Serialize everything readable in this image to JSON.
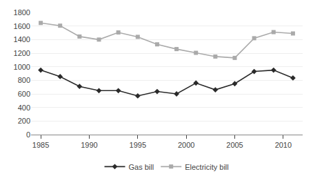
{
  "chart_data": {
    "type": "line",
    "x": [
      1985,
      1987,
      1989,
      1991,
      1993,
      1995,
      1997,
      1999,
      2001,
      2003,
      2005,
      2007,
      2009,
      2011
    ],
    "series": [
      {
        "name": "Gas bill",
        "color": "#2a2a2a",
        "marker": "diamond",
        "values": [
          950,
          855,
          710,
          648,
          648,
          570,
          635,
          600,
          760,
          660,
          750,
          930,
          950,
          835
        ]
      },
      {
        "name": "Electricity bill",
        "color": "#aaaaaa",
        "marker": "square",
        "values": [
          1645,
          1605,
          1445,
          1400,
          1505,
          1440,
          1330,
          1260,
          1205,
          1150,
          1130,
          1420,
          1510,
          1490
        ]
      }
    ],
    "xlim": [
      1984,
      2012
    ],
    "xticks": [
      1985,
      1990,
      1995,
      2000,
      2005,
      2010
    ],
    "ylim": [
      0,
      1800
    ],
    "yticks": [
      0,
      200,
      400,
      600,
      800,
      1000,
      1200,
      1400,
      1600,
      1800
    ],
    "grid": true,
    "legend": "bottom"
  }
}
